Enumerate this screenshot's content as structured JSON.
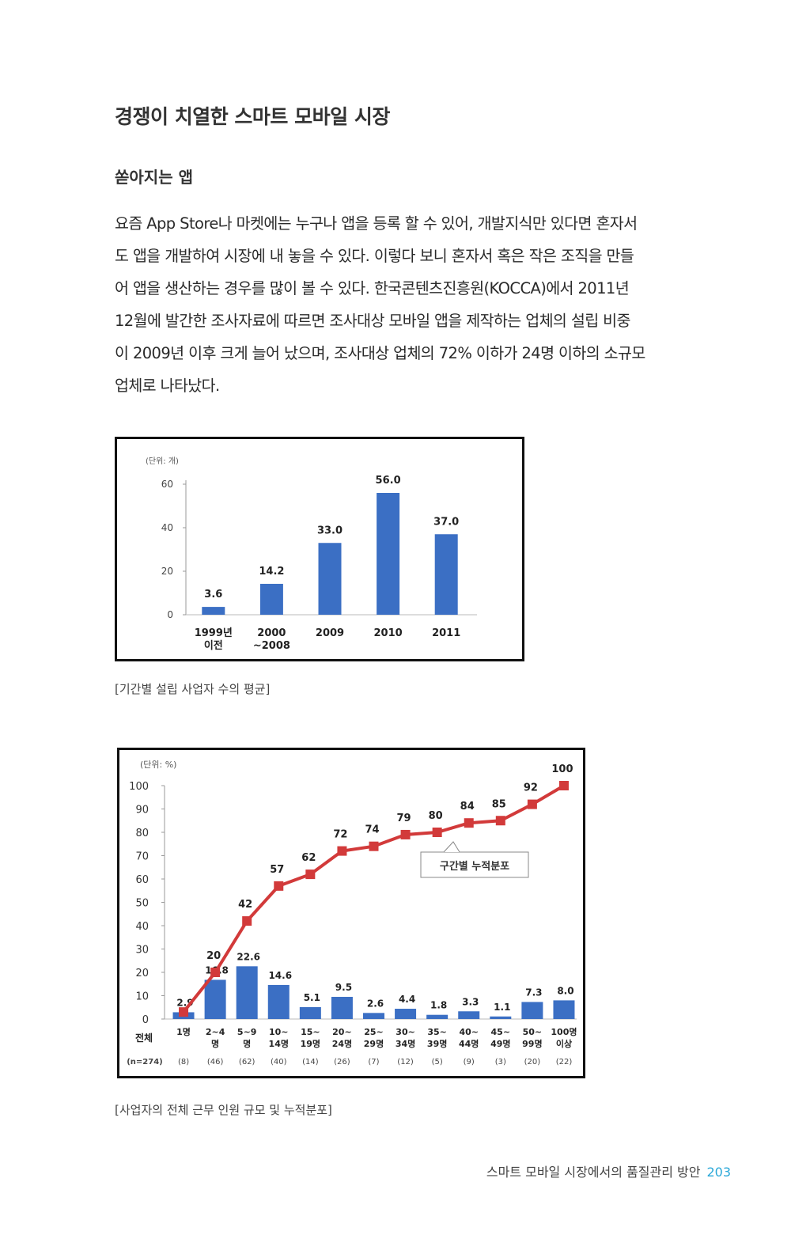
{
  "page": {
    "title": "경쟁이 치열한 스마트 모바일 시장",
    "subtitle": "쏟아지는 앱",
    "paragraph": [
      "요즘 App Store나 마켓에는 누구나 앱을 등록 할 수 있어, 개발지식만 있다면 혼자서",
      "도 앱을 개발하여 시장에 내 놓을 수 있다. 이렇다 보니 혼자서 혹은 작은 조직을 만들",
      "어 앱을 생산하는 경우를 많이 볼 수 있다. 한국콘텐츠진흥원(KOCCA)에서 2011년",
      "12월에 발간한 조사자료에 따르면 조사대상 모바일 앱을 제작하는 업체의 설립 비중",
      "이 2009년 이후 크게 늘어 났으며, 조사대상 업체의 72% 이하가 24명 이하의 소규모",
      "업체로 나타났다."
    ],
    "caption1": "[기간별 설립 사업자 수의 평균]",
    "caption2": "[사업자의 전체 근무 인원 규모 및 누적분포]",
    "footer_text": "스마트 모바일 시장에서의 품질관리 방안",
    "page_number": "203"
  },
  "chart_data": [
    {
      "type": "bar",
      "unit_label": "(단위: 개)",
      "categories": [
        "1999년\n이전",
        "2000\n~2008",
        "2009",
        "2010",
        "2011"
      ],
      "values": [
        3.6,
        14.2,
        33.0,
        56.0,
        37.0
      ],
      "value_labels": [
        "3.6",
        "14.2",
        "33.0",
        "56.0",
        "37.0"
      ],
      "yticks": [
        "0",
        "20",
        "40",
        "60"
      ],
      "ylim": [
        0,
        60
      ],
      "color": "#3b6fc4"
    },
    {
      "type": "bar+line",
      "unit_label": "(단위: %)",
      "total_label": "전체",
      "total_n": "(n=274)",
      "categories": [
        "1명",
        "2~4\n명",
        "5~9\n명",
        "10~\n14명",
        "15~\n19명",
        "20~\n24명",
        "25~\n29명",
        "30~\n34명",
        "35~\n39명",
        "40~\n44명",
        "45~\n49명",
        "50~\n99명",
        "100명\n이상"
      ],
      "counts": [
        "(8)",
        "(46)",
        "(62)",
        "(40)",
        "(14)",
        "(26)",
        "(7)",
        "(12)",
        "(5)",
        "(9)",
        "(3)",
        "(20)",
        "(22)"
      ],
      "bar_values": [
        2.9,
        16.8,
        22.6,
        14.6,
        5.1,
        9.5,
        2.6,
        4.4,
        1.8,
        3.3,
        1.1,
        7.3,
        8.0
      ],
      "bar_labels": [
        "2.9",
        "16.8",
        "22.6",
        "14.6",
        "5.1",
        "9.5",
        "2.6",
        "4.4",
        "1.8",
        "3.3",
        "1.1",
        "7.3",
        "8.0"
      ],
      "line_values": [
        3,
        20,
        42,
        57,
        62,
        72,
        74,
        79,
        80,
        84,
        85,
        92,
        100
      ],
      "line_labels": [
        "",
        "20",
        "42",
        "57",
        "62",
        "72",
        "74",
        "79",
        "80",
        "84",
        "85",
        "92",
        "100"
      ],
      "legend": "구간별 누적분포",
      "yticks": [
        "0",
        "10",
        "20",
        "30",
        "40",
        "50",
        "60",
        "70",
        "80",
        "90",
        "100"
      ],
      "ylim": [
        0,
        100
      ],
      "bar_color": "#3b6fc4",
      "line_color": "#d23a3a"
    }
  ]
}
